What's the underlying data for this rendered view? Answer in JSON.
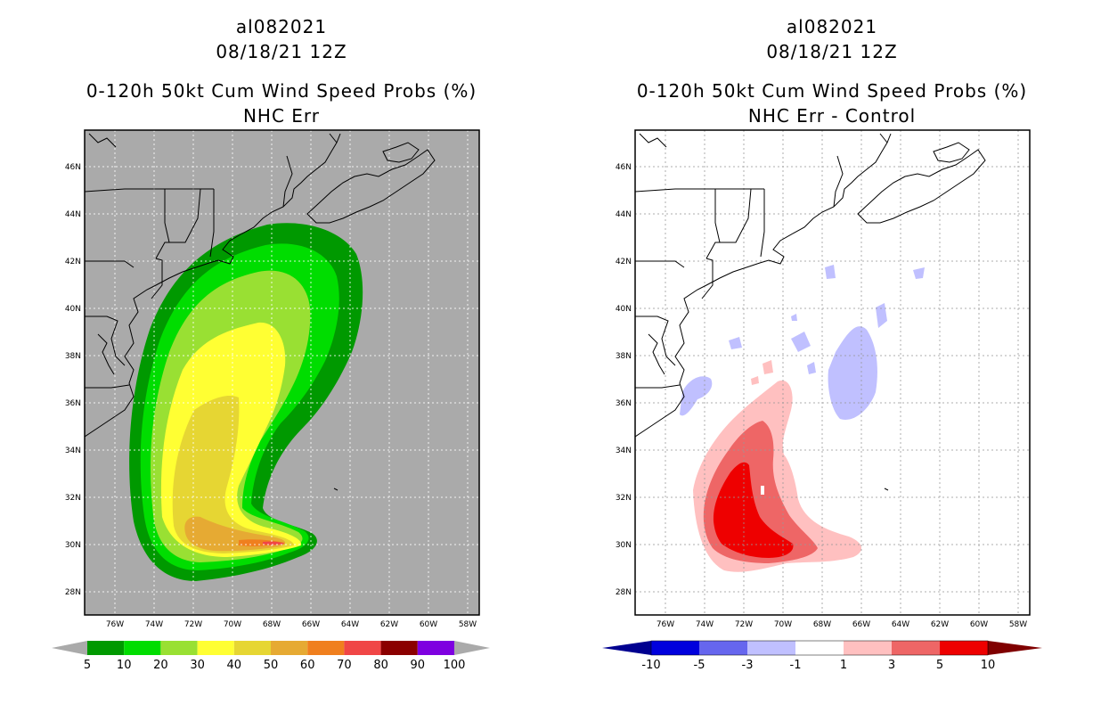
{
  "left_panel": {
    "storm_id": "al082021",
    "datetime": "08/18/21 12Z",
    "title": "0-120h 50kt Cum Wind Speed Probs (%)",
    "subtitle": "NHC Err",
    "lat_labels": [
      "46N",
      "44N",
      "42N",
      "40N",
      "38N",
      "36N",
      "34N",
      "32N",
      "30N",
      "28N"
    ],
    "lon_labels": [
      "76W",
      "74W",
      "72W",
      "70W",
      "68W",
      "66W",
      "64W",
      "62W",
      "60W",
      "58W"
    ],
    "colorbar": {
      "labels": [
        "5",
        "10",
        "20",
        "30",
        "40",
        "50",
        "60",
        "70",
        "80",
        "90",
        "100"
      ],
      "colors": [
        "#009900",
        "#00dd00",
        "#99e033",
        "#ffff33",
        "#e6d633",
        "#e6aa33",
        "#f07f1e",
        "#f04646",
        "#8b0000",
        "#7e00e0"
      ],
      "end_color": "#aaaaaa"
    },
    "colors": {
      "background": "#aaaaaa"
    }
  },
  "right_panel": {
    "storm_id": "al082021",
    "datetime": "08/18/21 12Z",
    "title": "0-120h 50kt Cum Wind Speed Probs (%)",
    "subtitle": "NHC Err - Control",
    "lat_labels": [
      "46N",
      "44N",
      "42N",
      "40N",
      "38N",
      "36N",
      "34N",
      "32N",
      "30N",
      "28N"
    ],
    "lon_labels": [
      "76W",
      "74W",
      "72W",
      "70W",
      "68W",
      "66W",
      "64W",
      "62W",
      "60W",
      "58W"
    ],
    "colorbar": {
      "labels": [
        "-10",
        "-5",
        "-3",
        "-1",
        "1",
        "3",
        "5",
        "10"
      ],
      "colors": [
        "#0000dd",
        "#6666ee",
        "#c0c0ff",
        "#ffffff",
        "#ffc0c0",
        "#ee6666",
        "#ee0000"
      ],
      "start_color": "#000090",
      "end_color": "#800000"
    },
    "colors": {
      "background": "#ffffff"
    }
  }
}
